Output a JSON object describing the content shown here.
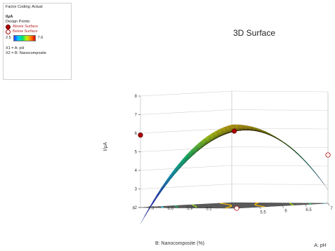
{
  "legend": {
    "factor_coding": "Factor Coding: Actual",
    "response": "I/μA",
    "design_points_label": "Design Points:",
    "above": "Above Surface",
    "below": "Below Surface",
    "cmin": "2.5",
    "cmax": "7.6",
    "x1": "X1 = A: pH",
    "x2": "X2 = B: Nanocomposite",
    "colors": {
      "above": "#b00000",
      "below": "#ffffff",
      "low": "#1f3cff",
      "high": "#e00000"
    }
  },
  "chart_data": {
    "type": "surface",
    "title": "3D Surface",
    "zlabel": "I/μA",
    "xlabel": "A: pH",
    "ylabel": "B: Nanocomposite (%)",
    "z_ticks": [
      "2",
      "3",
      "4",
      "5",
      "6",
      "7",
      "8"
    ],
    "x_ticks": [
      "5.5",
      "6",
      "6.5",
      "7"
    ],
    "y_ticks": [
      "5.2",
      "5.9",
      "6.6",
      "7.3",
      "8"
    ],
    "x_range": [
      5,
      7
    ],
    "y_range": [
      4.5,
      8
    ],
    "z_range": [
      2,
      8
    ],
    "color_range": [
      2.5,
      7.6
    ],
    "points": [
      {
        "x": 5,
        "y": 8,
        "z": 5.9,
        "type": "above"
      },
      {
        "x": 6,
        "y": 6.25,
        "z": 6.0,
        "type": "above"
      },
      {
        "x": 7,
        "y": 4.5,
        "z": 4.6,
        "type": "below"
      },
      {
        "x": 5,
        "y": 4.5,
        "z": 1.8,
        "type": "below"
      }
    ]
  }
}
